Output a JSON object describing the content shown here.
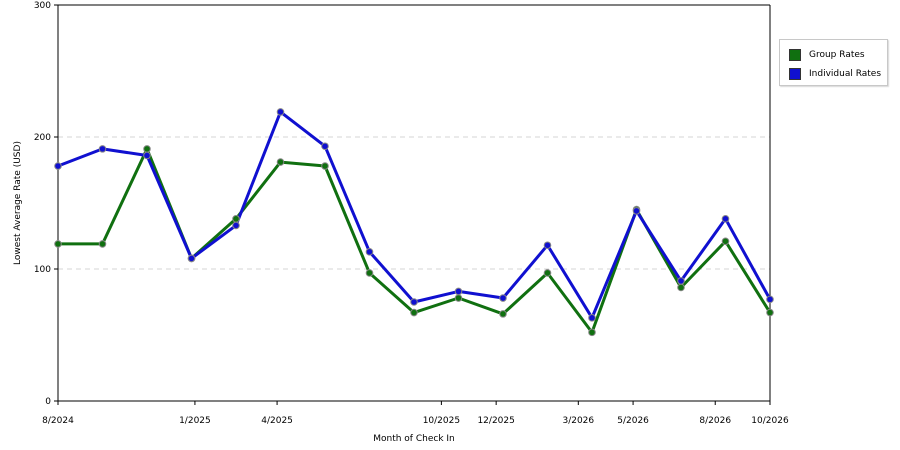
{
  "chart_data": {
    "type": "line",
    "title": "",
    "xlabel": "Month of Check In",
    "ylabel": "Lowest Average Rate (USD)",
    "ylim": [
      0,
      300
    ],
    "yticks": [
      "0",
      "100",
      "200",
      "300"
    ],
    "xticks": [
      "8/2024",
      "1/2025",
      "4/2025",
      "10/2025",
      "12/2025",
      "3/2026",
      "5/2026",
      "8/2026",
      "10/2026"
    ],
    "grid": true,
    "legend_position": "right",
    "series": [
      {
        "name": "Group Rates",
        "color": "#107010",
        "values": [
          119,
          119,
          191,
          108,
          138,
          181,
          178,
          97,
          67,
          78,
          66,
          97,
          52,
          145,
          86,
          121,
          67
        ]
      },
      {
        "name": "Individual Rates",
        "color": "#1010d0",
        "values": [
          178,
          191,
          186,
          108,
          133,
          219,
          193,
          113,
          75,
          83,
          78,
          118,
          63,
          144,
          91,
          138,
          77
        ]
      }
    ]
  }
}
